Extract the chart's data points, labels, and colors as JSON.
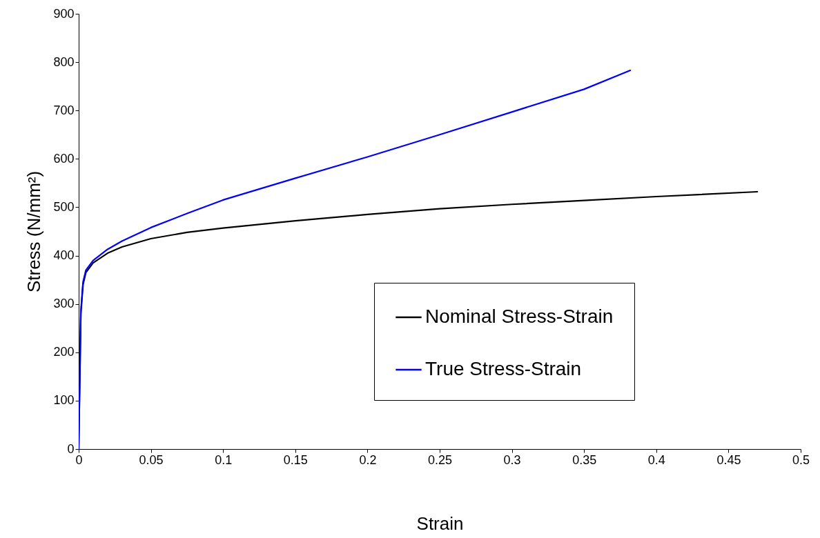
{
  "chart_data": {
    "type": "line",
    "xlabel": "Strain",
    "ylabel": "Stress (N/mm²)",
    "xlim": [
      0,
      0.5
    ],
    "xticks": [
      0,
      0.05,
      0.1,
      0.15,
      0.2,
      0.25,
      0.3,
      0.35,
      0.4,
      0.45,
      0.5
    ],
    "ylim": [
      0,
      900
    ],
    "yticks": [
      0,
      100,
      200,
      300,
      400,
      500,
      600,
      700,
      800,
      900
    ],
    "grid": false,
    "legend": "bottom right",
    "marker": "none",
    "line_style": "solid",
    "series": [
      {
        "name": "Nominal Stress-Strain",
        "color": "#000000",
        "x": [
          0,
          0.0015,
          0.003,
          0.005,
          0.01,
          0.02,
          0.03,
          0.05,
          0.075,
          0.1,
          0.15,
          0.2,
          0.25,
          0.3,
          0.35,
          0.4,
          0.47
        ],
        "values": [
          0,
          280,
          340,
          365,
          385,
          405,
          418,
          435,
          448,
          457,
          472,
          485,
          497,
          506,
          514,
          522,
          532
        ]
      },
      {
        "name": "True Stress-Strain",
        "color": "#0000ff",
        "x": [
          0,
          0.0015,
          0.003,
          0.005,
          0.01,
          0.02,
          0.03,
          0.05,
          0.075,
          0.1,
          0.15,
          0.2,
          0.25,
          0.3,
          0.35,
          0.382
        ],
        "values": [
          0,
          285,
          345,
          370,
          390,
          413,
          430,
          458,
          487,
          515,
          560,
          604,
          650,
          697,
          744,
          783
        ]
      }
    ]
  }
}
